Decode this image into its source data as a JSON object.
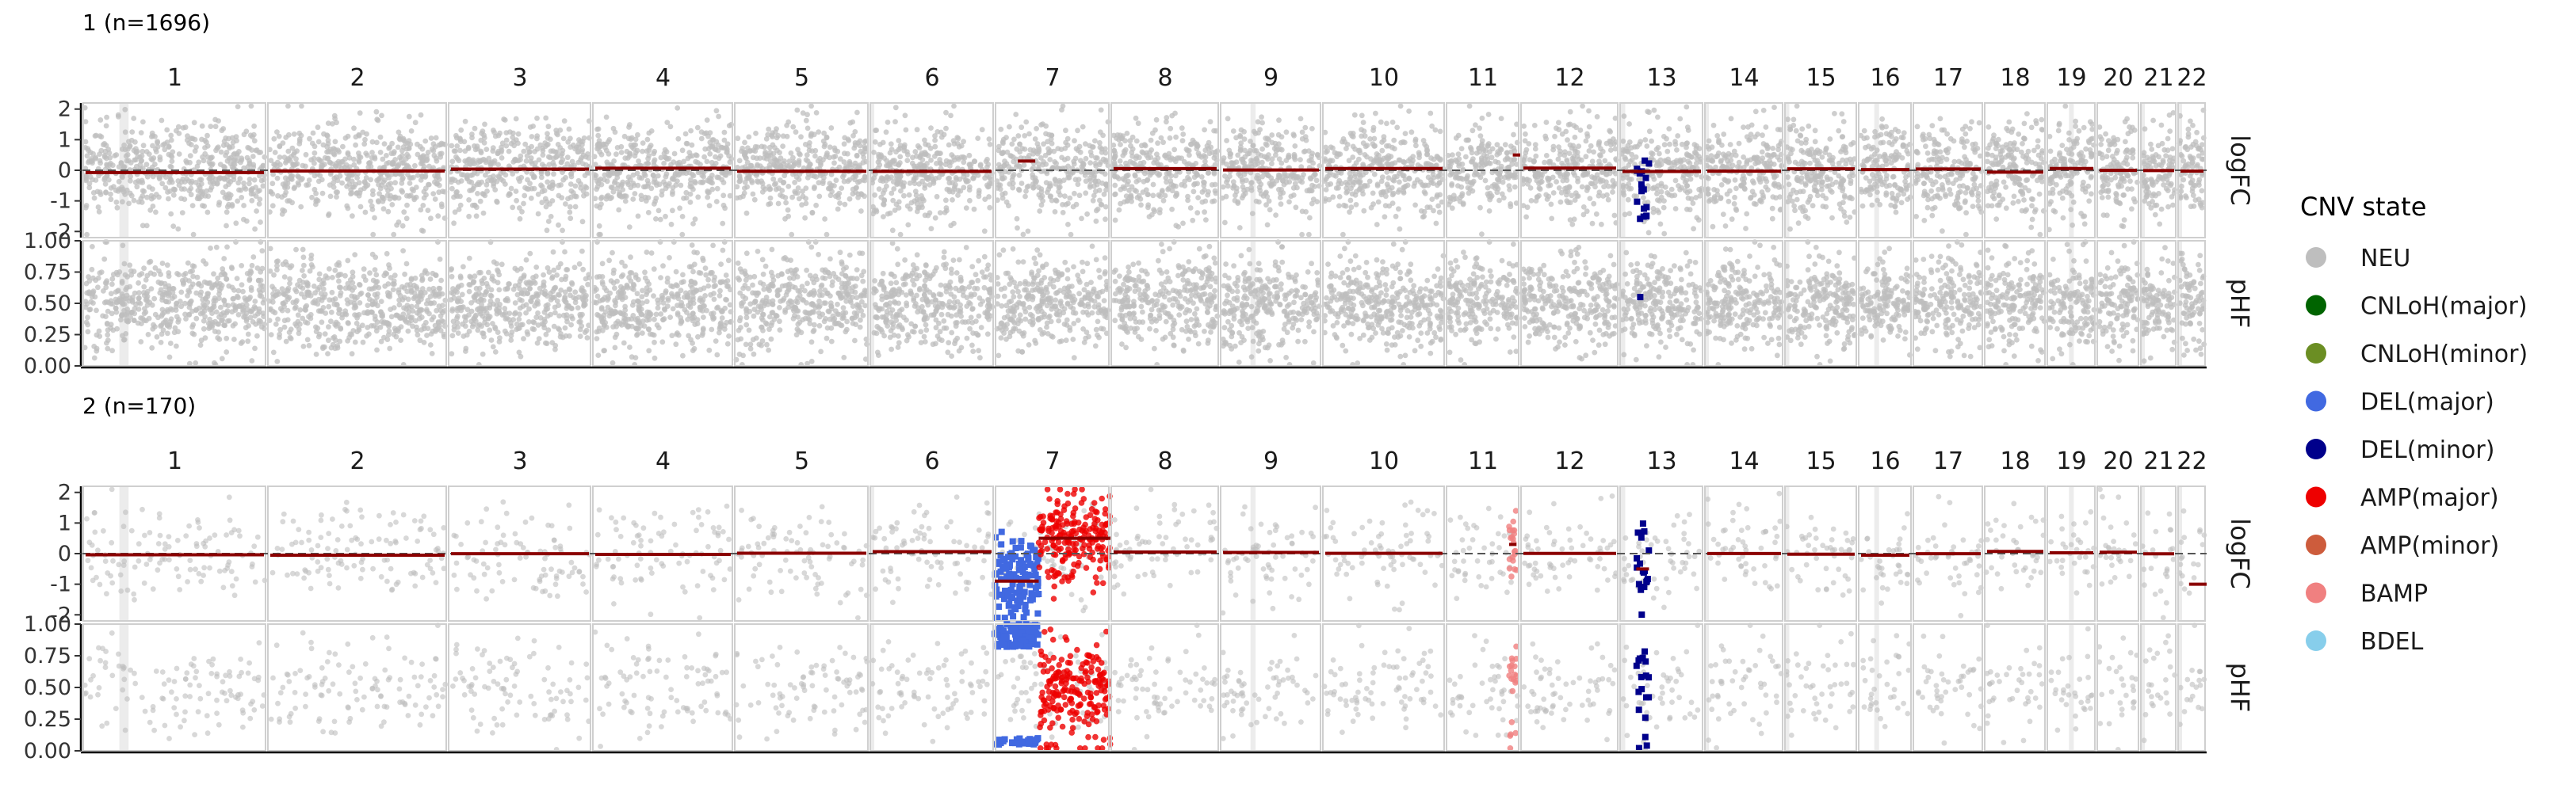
{
  "chart_data": {
    "type": "scatter",
    "chromosomes": [
      "1",
      "2",
      "3",
      "4",
      "5",
      "6",
      "7",
      "8",
      "9",
      "10",
      "11",
      "12",
      "13",
      "14",
      "15",
      "16",
      "17",
      "18",
      "19",
      "20",
      "21",
      "22"
    ],
    "panels": [
      {
        "title": "1 (n=1696)",
        "rows": [
          {
            "label": "logFC",
            "ylim": [
              -2.2,
              2.2
            ],
            "ticks": [
              "-2",
              "-1",
              "0",
              "1",
              "2"
            ],
            "tick_values": [
              -2,
              -1,
              0,
              1,
              2
            ]
          },
          {
            "label": "pHF",
            "ylim": [
              0,
              1
            ],
            "ticks": [
              "0.00",
              "0.25",
              "0.50",
              "0.75",
              "1.00"
            ],
            "tick_values": [
              0,
              0.25,
              0.5,
              0.75,
              1
            ]
          }
        ],
        "segments": [
          {
            "chr": "7",
            "from": 0.2,
            "to": 0.35,
            "logFC": 0.3,
            "state": "AMP(minor)"
          },
          {
            "chr": "11",
            "from": 0.9,
            "to": 1.0,
            "logFC": 0.5,
            "state": "AMP(minor)"
          },
          {
            "chr": "13",
            "from": 0.2,
            "to": 0.35,
            "state": "DEL(minor)",
            "logFC_range": [
              -2,
              0.5
            ],
            "pHF": 0.55
          }
        ]
      },
      {
        "title": "2 (n=170)",
        "rows": [
          {
            "label": "logFC",
            "ylim": [
              -2.2,
              2.2
            ],
            "ticks": [
              "-2",
              "-1",
              "0",
              "1",
              "2"
            ],
            "tick_values": [
              -2,
              -1,
              0,
              1,
              2
            ]
          },
          {
            "label": "pHF",
            "ylim": [
              0,
              1
            ],
            "ticks": [
              "0.00",
              "0.25",
              "0.50",
              "0.75",
              "1.00"
            ],
            "tick_values": [
              0,
              0.25,
              0.5,
              0.75,
              1
            ]
          }
        ],
        "segments": [
          {
            "chr": "7",
            "from": 0.0,
            "to": 0.38,
            "logFC": -0.9,
            "state": "DEL(major)"
          },
          {
            "chr": "7",
            "from": 0.38,
            "to": 1.0,
            "logFC": 0.5,
            "state": "AMP(major)"
          },
          {
            "chr": "11",
            "from": 0.85,
            "to": 0.95,
            "logFC": 0.3,
            "state": "BAMP"
          },
          {
            "chr": "13",
            "from": 0.2,
            "to": 0.35,
            "logFC": -0.5,
            "state": "DEL(minor)"
          },
          {
            "chr": "22",
            "from": 0.4,
            "to": 1.0,
            "logFC": -1.0,
            "state": "NEU"
          }
        ]
      }
    ],
    "legend": {
      "title": "CNV state",
      "position": "right",
      "items": [
        {
          "label": "NEU",
          "color": "#bebebe"
        },
        {
          "label": "CNLoH(major)",
          "color": "#006400"
        },
        {
          "label": "CNLoH(minor)",
          "color": "#6b8e23"
        },
        {
          "label": "DEL(major)",
          "color": "#4169e1"
        },
        {
          "label": "DEL(minor)",
          "color": "#00008b"
        },
        {
          "label": "AMP(major)",
          "color": "#ee0000"
        },
        {
          "label": "AMP(minor)",
          "color": "#cd5c3c"
        },
        {
          "label": "BAMP",
          "color": "#f08080"
        },
        {
          "label": "BDEL",
          "color": "#87ceeb"
        }
      ]
    }
  }
}
